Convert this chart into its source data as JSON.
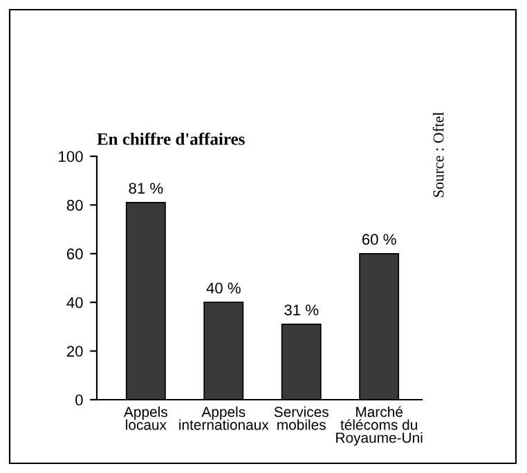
{
  "chart_data": {
    "type": "bar",
    "title": "En chiffre d'affaires",
    "categories": [
      "Appels\nlocaux",
      "Appels\ninternationaux",
      "Services\nmobiles",
      "Marché\ntélécoms du\nRoyaume-Uni"
    ],
    "values": [
      81,
      40,
      31,
      60
    ],
    "color": "#3a3a3a",
    "value_labels": [
      "81 %",
      "40 %",
      "31 %",
      "60 %"
    ],
    "ylim": [
      0,
      100
    ],
    "yticks": [
      0,
      20,
      40,
      60,
      80,
      100
    ],
    "grid": false,
    "annotations": [
      "Source : Oftel"
    ]
  }
}
